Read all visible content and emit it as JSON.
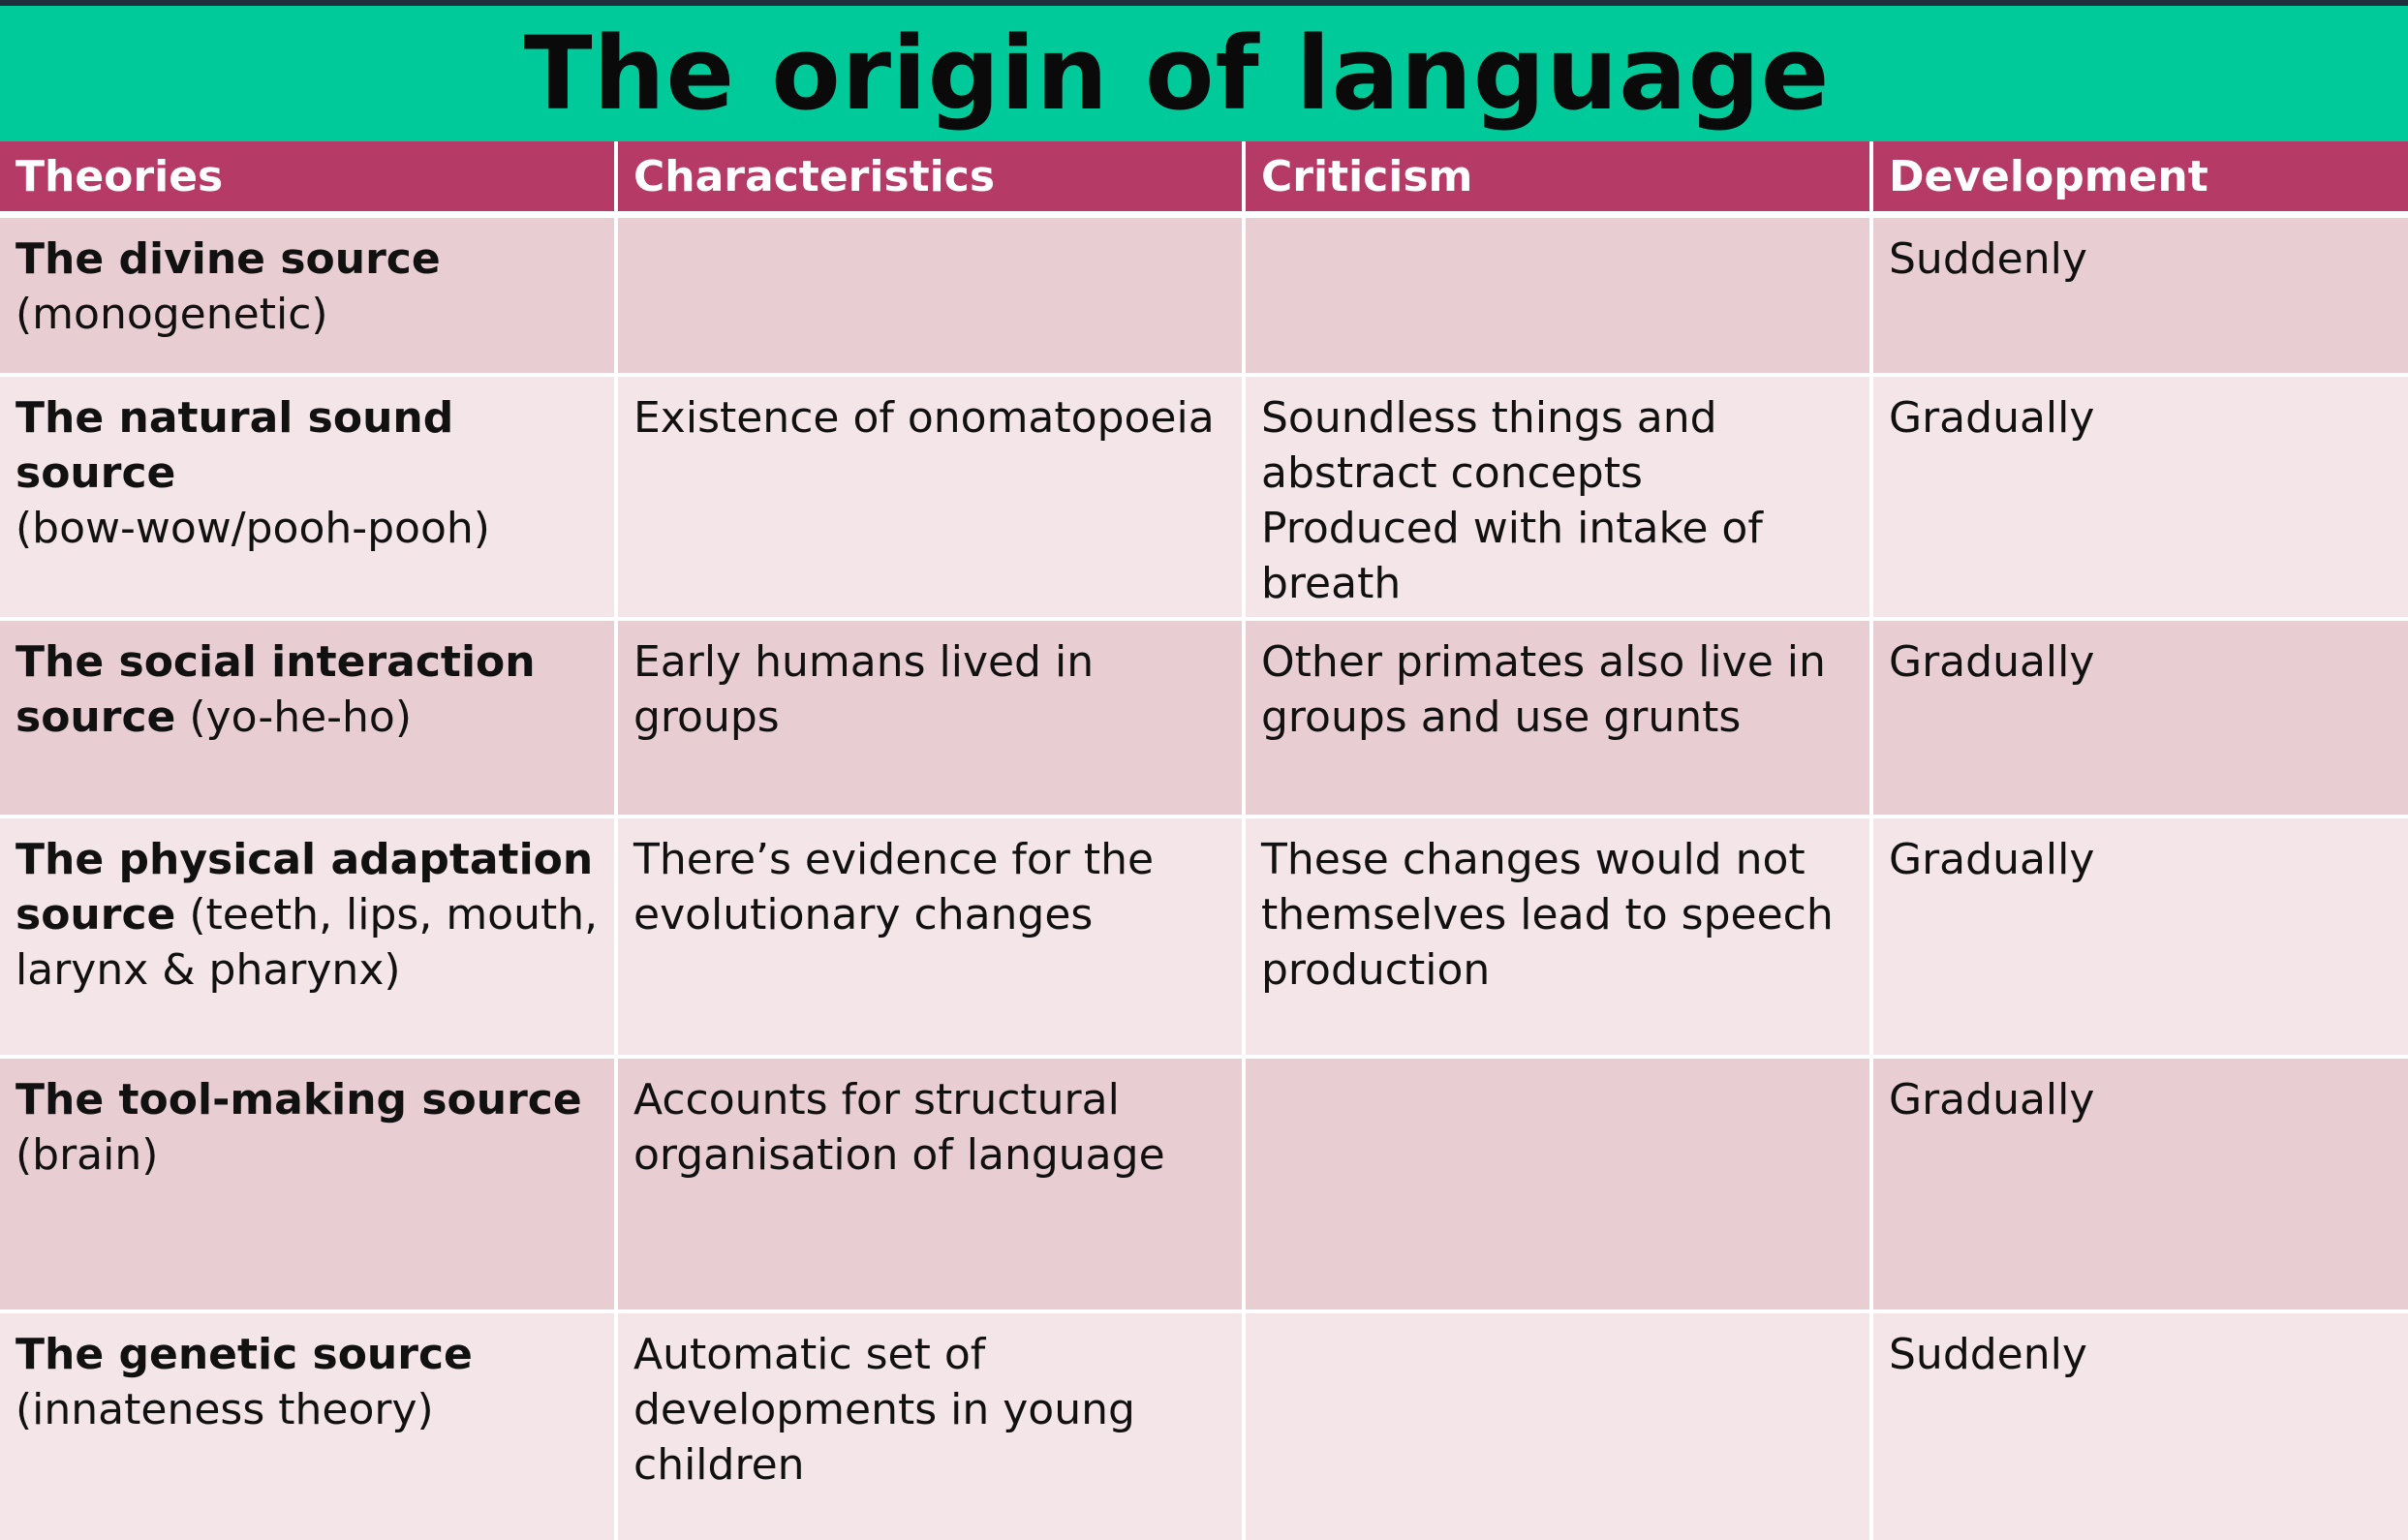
{
  "title": "The origin of language",
  "colors": {
    "title_band": "#00c99a",
    "header_row": "#b63a66",
    "row_dark": "#e8cdd3",
    "row_light": "#f3e5e8"
  },
  "headers": [
    "Theories",
    "Characteristics",
    "Criticism",
    "Development"
  ],
  "rows": [
    {
      "theory_name": "The divine source",
      "theory_detail": "(monogenetic)",
      "characteristics": "",
      "criticism": "",
      "development": "Suddenly"
    },
    {
      "theory_name": "The natural sound source",
      "theory_detail": "(bow-wow/pooh-pooh)",
      "characteristics": "Existence of onomatopoeia",
      "criticism": "Soundless things and abstract concepts Produced with intake of breath",
      "development": "Gradually"
    },
    {
      "theory_name": "The social interaction source",
      "theory_detail": "(yo-he-ho)",
      "characteristics": "Early humans lived in groups",
      "criticism": "Other primates also live in groups and use grunts",
      "development": "Gradually"
    },
    {
      "theory_name": "The physical adaptation source",
      "theory_detail": "(teeth, lips, mouth, larynx & pharynx)",
      "characteristics": "There’s evidence for the evolutionary changes",
      "criticism": "These changes would not themselves lead to speech production",
      "development": "Gradually"
    },
    {
      "theory_name": "The tool-making source",
      "theory_detail": "(brain)",
      "characteristics": "Accounts for  structural organisation of language",
      "criticism": "",
      "development": "Gradually"
    },
    {
      "theory_name": "The genetic source",
      "theory_detail": "(innateness theory)",
      "characteristics": "Automatic set of developments in young children",
      "criticism": "",
      "development": "Suddenly"
    }
  ]
}
